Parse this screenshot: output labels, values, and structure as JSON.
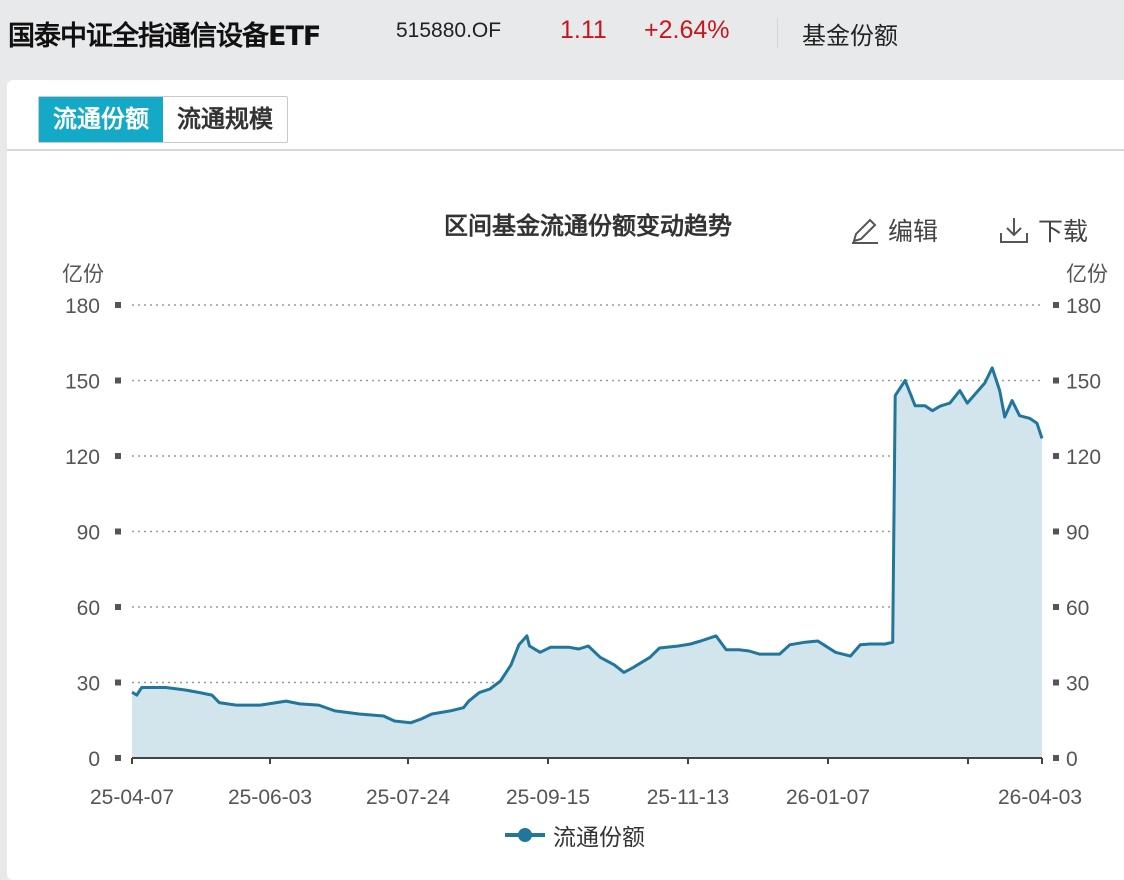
{
  "header": {
    "fund_name": "国泰中证全指通信设备ETF",
    "fund_code": "515880.OF",
    "price": "1.11",
    "change": "+2.64%",
    "section": "基金份额",
    "price_color": "#c8161d"
  },
  "tabs": [
    {
      "label": "流通份额",
      "active": true
    },
    {
      "label": "流通规模",
      "active": false
    }
  ],
  "toolbar": {
    "edit_label": "编辑",
    "download_label": "下载",
    "edit_icon": "pencil-icon",
    "download_icon": "download-icon"
  },
  "chart_data": {
    "type": "area",
    "title": "区间基金流通份额变动趋势",
    "ylabel_left": "亿份",
    "ylabel_right": "亿份",
    "ylim": [
      0,
      180
    ],
    "yticks": [
      0,
      30,
      60,
      90,
      120,
      150,
      180
    ],
    "xtick_labels": [
      "25-04-07",
      "25-06-03",
      "25-07-24",
      "25-09-15",
      "25-11-13",
      "26-01-07",
      "26-04-03"
    ],
    "grid": "horizontal dotted",
    "legend_position": "bottom",
    "line_color": "#21769b",
    "fill_color": "#d2e4ec",
    "series": [
      {
        "name": "流通份额",
        "points": [
          [
            "2025-04-07",
            26.2
          ],
          [
            "2025-04-09",
            25
          ],
          [
            "2025-04-11",
            28
          ],
          [
            "2025-04-21",
            28
          ],
          [
            "2025-04-29",
            27
          ],
          [
            "2025-05-05",
            26
          ],
          [
            "2025-05-10",
            25
          ],
          [
            "2025-05-13",
            22
          ],
          [
            "2025-05-20",
            21
          ],
          [
            "2025-05-30",
            21
          ],
          [
            "2025-06-09",
            22.6
          ],
          [
            "2025-06-14",
            21.5
          ],
          [
            "2025-06-21",
            21
          ],
          [
            "2025-06-27",
            18.7
          ],
          [
            "2025-07-06",
            17.5
          ],
          [
            "2025-07-15",
            16.7
          ],
          [
            "2025-07-19",
            14.7
          ],
          [
            "2025-07-25",
            14
          ],
          [
            "2025-07-29",
            15.5
          ],
          [
            "2025-08-02",
            17.5
          ],
          [
            "2025-08-09",
            18.7
          ],
          [
            "2025-08-14",
            20
          ],
          [
            "2025-08-16",
            22.6
          ],
          [
            "2025-08-20",
            26
          ],
          [
            "2025-08-24",
            27.4
          ],
          [
            "2025-08-28",
            30.6
          ],
          [
            "2025-09-01",
            37
          ],
          [
            "2025-09-04",
            45
          ],
          [
            "2025-09-07",
            48.5
          ],
          [
            "2025-09-08",
            44.5
          ],
          [
            "2025-09-12",
            42
          ],
          [
            "2025-09-16",
            44
          ],
          [
            "2025-09-24",
            44
          ],
          [
            "2025-09-28",
            43.3
          ],
          [
            "2025-10-02",
            44.5
          ],
          [
            "2025-10-07",
            40
          ],
          [
            "2025-10-13",
            37
          ],
          [
            "2025-10-17",
            34
          ],
          [
            "2025-10-21",
            36
          ],
          [
            "2025-10-28",
            40
          ],
          [
            "2025-11-01",
            43.7
          ],
          [
            "2025-11-09",
            44.5
          ],
          [
            "2025-11-14",
            45.3
          ],
          [
            "2025-11-18",
            46.5
          ],
          [
            "2025-11-24",
            48.5
          ],
          [
            "2025-11-28",
            43
          ],
          [
            "2025-12-03",
            43
          ],
          [
            "2025-12-07",
            42.5
          ],
          [
            "2025-12-11",
            41.3
          ],
          [
            "2025-12-19",
            41.3
          ],
          [
            "2025-12-23",
            45
          ],
          [
            "2025-12-29",
            46
          ],
          [
            "2026-01-03",
            46.5
          ],
          [
            "2026-01-10",
            42
          ],
          [
            "2026-01-16",
            40.5
          ],
          [
            "2026-01-20",
            45
          ],
          [
            "2026-01-24",
            45.3
          ],
          [
            "2026-01-30",
            45.3
          ],
          [
            "2026-02-02",
            46
          ],
          [
            "2026-02-03",
            144
          ],
          [
            "2026-02-07",
            150
          ],
          [
            "2026-02-09",
            145
          ],
          [
            "2026-02-11",
            140
          ],
          [
            "2026-02-15",
            140
          ],
          [
            "2026-02-18",
            138
          ],
          [
            "2026-02-21",
            139.8
          ],
          [
            "2026-02-25",
            141
          ],
          [
            "2026-03-01",
            146
          ],
          [
            "2026-03-04",
            141
          ],
          [
            "2026-03-11",
            149
          ],
          [
            "2026-03-14",
            155
          ],
          [
            "2026-03-17",
            146
          ],
          [
            "2026-03-19",
            135.5
          ],
          [
            "2026-03-22",
            142
          ],
          [
            "2026-03-25",
            136
          ],
          [
            "2026-03-29",
            135
          ],
          [
            "2026-04-01",
            133
          ],
          [
            "2026-04-03",
            127
          ]
        ]
      }
    ]
  }
}
